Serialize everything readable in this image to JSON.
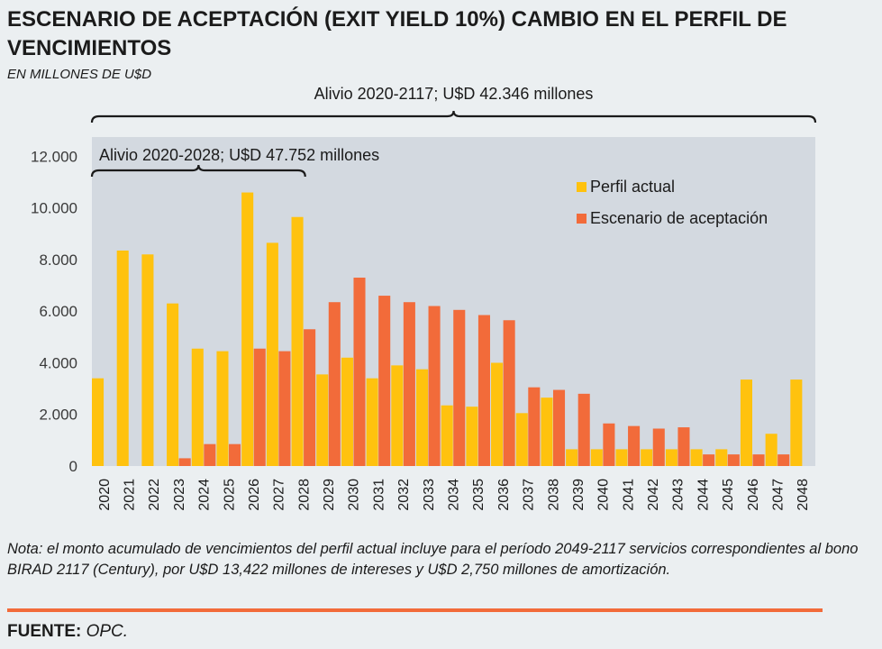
{
  "title": "ESCENARIO DE ACEPTACIÓN (EXIT YIELD 10%) CAMBIO EN EL PERFIL DE VENCIMIENTOS",
  "subtitle": "EN MILLONES DE U$D",
  "note": "Nota: el monto acumulado de vencimientos del perfil actual incluye para el período 2049-2117 servicios correspondientes al bono BIRAD 2117 (Century), por U$D 13,422 millones de intereses y U$D 2,750 millones de amortización.",
  "source": {
    "label": "FUENTE:",
    "value": "OPC."
  },
  "colors": {
    "actual": "#ffc20e",
    "aceptacion": "#f26b3a",
    "plot_bg": "#d3d9e0",
    "page_bg": "#ebeff1",
    "rule": "#f26b3a"
  },
  "chart_data": {
    "type": "bar",
    "categories": [
      "2020",
      "2021",
      "2022",
      "2023",
      "2024",
      "2025",
      "2026",
      "2027",
      "2028",
      "2029",
      "2030",
      "2031",
      "2032",
      "2033",
      "2034",
      "2035",
      "2036",
      "2037",
      "2038",
      "2039",
      "2040",
      "2041",
      "2042",
      "2043",
      "2044",
      "2045",
      "2046",
      "2047",
      "2048"
    ],
    "series": [
      {
        "name": "Perfil actual",
        "color": "#ffc20e",
        "values": [
          3400,
          8350,
          8200,
          6300,
          4550,
          4450,
          10600,
          8650,
          9650,
          3550,
          4200,
          3400,
          3900,
          3750,
          2350,
          2300,
          4000,
          2050,
          2650,
          650,
          650,
          650,
          650,
          650,
          650,
          650,
          3350,
          1250,
          3350
        ]
      },
      {
        "name": "Escenario de aceptación",
        "color": "#f26b3a",
        "values": [
          0,
          0,
          0,
          300,
          850,
          850,
          4550,
          4450,
          5300,
          6350,
          7300,
          6600,
          6350,
          6200,
          6050,
          5850,
          5650,
          3050,
          2950,
          2800,
          1650,
          1550,
          1450,
          1500,
          450,
          450,
          450,
          450,
          0
        ]
      }
    ],
    "ylim": [
      0,
      12750
    ],
    "yticks": [
      0,
      2000,
      4000,
      6000,
      8000,
      10000,
      12000
    ],
    "ytick_labels": [
      "0",
      "2.000",
      "4.000",
      "6.000",
      "8.000",
      "10.000",
      "12.000"
    ],
    "legend_position": "top-right",
    "annotations": [
      {
        "text": "Alivio 2020-2117; U$D 42.346 millones",
        "from": "2020",
        "to": "2048"
      },
      {
        "text": "Alivio 2020-2028; U$D 47.752 millones",
        "from": "2020",
        "to": "2028"
      }
    ]
  }
}
